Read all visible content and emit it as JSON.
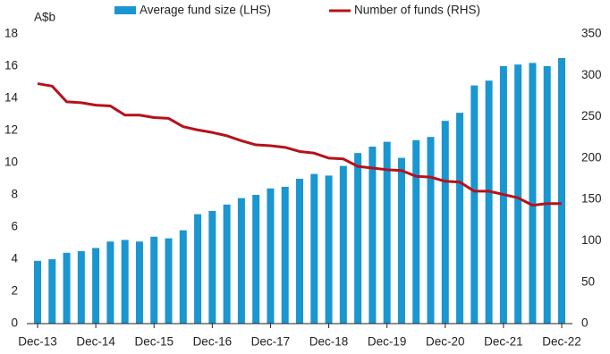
{
  "chart_data": {
    "type": "bar",
    "categories": [
      "Dec-13",
      null,
      null,
      null,
      "Dec-14",
      null,
      null,
      null,
      "Dec-15",
      null,
      null,
      null,
      "Dec-16",
      null,
      null,
      null,
      "Dec-17",
      null,
      null,
      null,
      "Dec-18",
      null,
      null,
      null,
      "Dec-19",
      null,
      null,
      null,
      "Dec-20",
      null,
      null,
      null,
      "Dec-21",
      null,
      null,
      null,
      "Dec-22"
    ],
    "series": [
      {
        "name": "Average fund size (LHS)",
        "type": "bar",
        "color": "#1a96d0",
        "values": [
          3.9,
          4.0,
          4.4,
          4.5,
          4.7,
          5.1,
          5.2,
          5.1,
          5.4,
          5.3,
          5.8,
          6.8,
          7.0,
          7.4,
          7.8,
          8.0,
          8.4,
          8.5,
          9.0,
          9.3,
          9.2,
          9.8,
          10.6,
          11.0,
          11.3,
          10.3,
          11.4,
          11.6,
          12.6,
          13.1,
          14.8,
          15.1,
          16.0,
          16.1,
          16.2,
          16.0,
          16.5
        ]
      },
      {
        "name": "Number of funds (RHS)",
        "type": "line",
        "axis": "y2",
        "color": "#b5121b",
        "values": [
          290,
          287,
          268,
          267,
          264,
          263,
          252,
          252,
          249,
          248,
          238,
          234,
          231,
          227,
          221,
          216,
          215,
          213,
          208,
          206,
          200,
          199,
          190,
          188,
          186,
          185,
          178,
          177,
          172,
          171,
          160,
          160,
          156,
          152,
          143,
          145,
          145
        ]
      }
    ],
    "y_label": "A$b",
    "ylim": [
      0,
      18
    ],
    "yticks": [
      0,
      2,
      4,
      6,
      8,
      10,
      12,
      14,
      16,
      18
    ],
    "y2lim": [
      0,
      350
    ],
    "y2ticks": [
      0,
      50,
      100,
      150,
      200,
      250,
      300,
      350
    ],
    "grid": false
  }
}
